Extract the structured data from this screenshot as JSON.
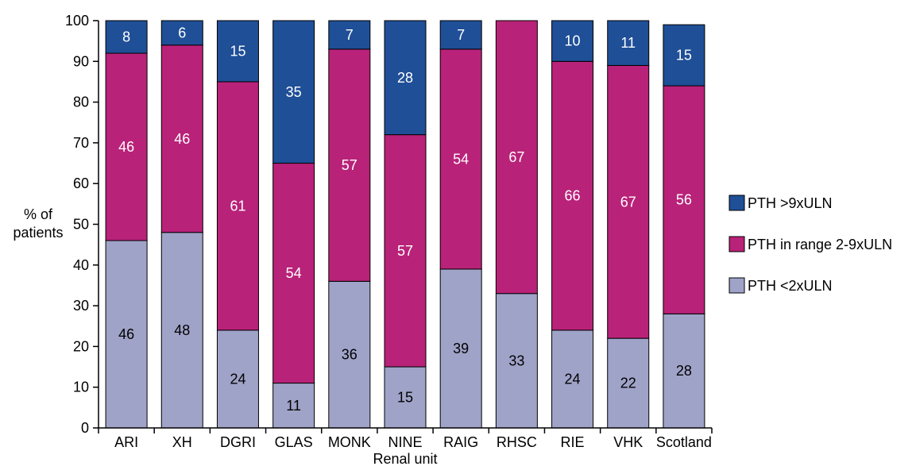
{
  "chart_data": {
    "type": "bar",
    "stacked": true,
    "title": "",
    "xlabel": "Renal unit",
    "ylabel": [
      "% of",
      "patients"
    ],
    "ylim": [
      0,
      100
    ],
    "yticks": [
      0,
      10,
      20,
      30,
      40,
      50,
      60,
      70,
      80,
      90,
      100
    ],
    "grid": false,
    "legend_position": "right",
    "categories": [
      "ARI",
      "XH",
      "DGRI",
      "GLAS",
      "MONK",
      "NINE",
      "RAIG",
      "RHSC",
      "RIE",
      "VHK",
      "Scotland"
    ],
    "series": [
      {
        "name": "PTH <2xULN",
        "color": "#a0a3c8",
        "label_color": "#000000",
        "values": [
          46,
          48,
          24,
          11,
          36,
          15,
          39,
          33,
          24,
          22,
          28
        ]
      },
      {
        "name": "PTH in range 2-9xULN",
        "color": "#b92279",
        "label_color": "#ffffff",
        "values": [
          46,
          46,
          61,
          54,
          57,
          57,
          54,
          67,
          66,
          67,
          56
        ]
      },
      {
        "name": "PTH >9xULN",
        "color": "#1f4f97",
        "label_color": "#ffffff",
        "values": [
          8,
          6,
          15,
          35,
          7,
          28,
          7,
          null,
          10,
          11,
          15
        ]
      }
    ],
    "legend_order": [
      "PTH >9xULN",
      "PTH in range 2-9xULN",
      "PTH <2xULN"
    ]
  }
}
